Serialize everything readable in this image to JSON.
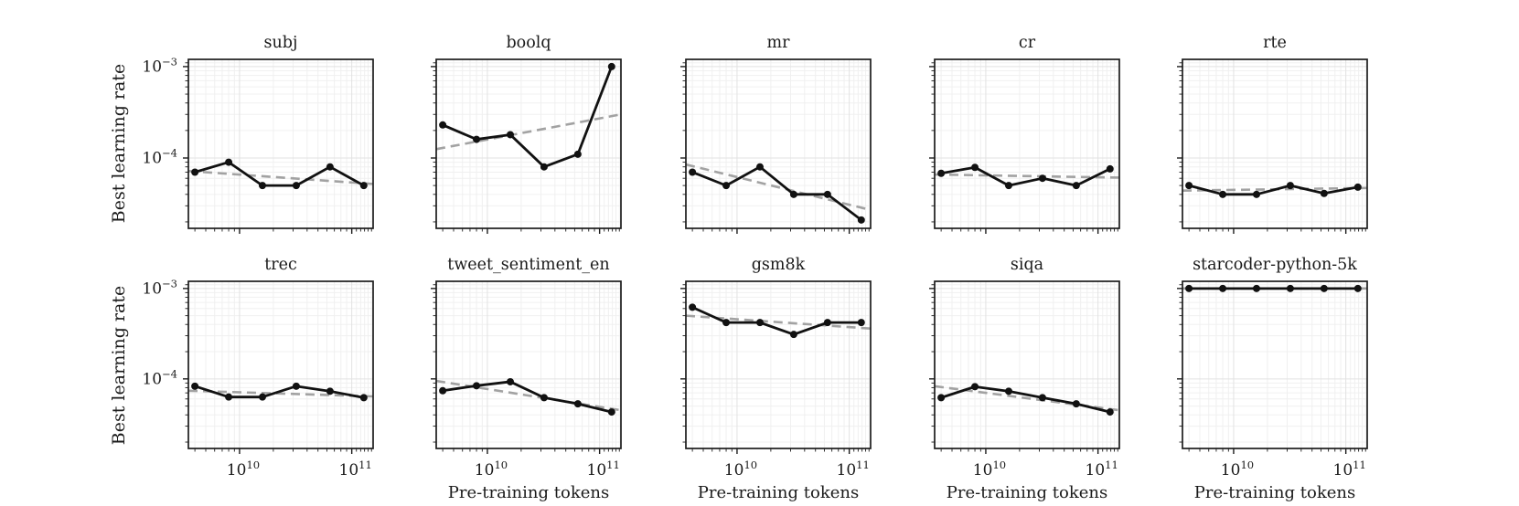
{
  "colors": {
    "background": "#ffffff",
    "data_line": "#111111",
    "marker": "#111111",
    "trend_line": "#999999",
    "grid_major": "#e2e2e2",
    "grid_minor": "#f0f0f0",
    "frame": "#1c1c1c",
    "text": "#1a1a1a"
  },
  "chart_data": {
    "type": "line",
    "layout": "2x5 grid of subplots, shared log-log axes, light gridlines, outward ticks bottom/left",
    "shared": {
      "xlabel": "Pre-training tokens",
      "ylabel": "Best learning rate",
      "xscale": "log",
      "yscale": "log",
      "xlim": [
        3500000000.0,
        155000000000.0
      ],
      "ylim": [
        1.7e-05,
        0.0012
      ],
      "x": [
        4000000000.0,
        8000000000.0,
        16000000000.0,
        32000000000.0,
        64000000000.0,
        128000000000.0
      ],
      "xticks": [
        {
          "value": 10000000000.0,
          "base": "10",
          "exp": "10"
        },
        {
          "value": 100000000000.0,
          "base": "10",
          "exp": "11"
        }
      ],
      "yticks": [
        {
          "value": 0.001,
          "base": "10",
          "exp": "−3"
        },
        {
          "value": 0.0001,
          "base": "10",
          "exp": "−4"
        }
      ],
      "xticks_minor": [
        4000000000.0,
        5000000000.0,
        6000000000.0,
        7000000000.0,
        8000000000.0,
        9000000000.0,
        20000000000.0,
        30000000000.0,
        40000000000.0,
        50000000000.0,
        60000000000.0,
        70000000000.0,
        80000000000.0,
        90000000000.0,
        110000000000.0,
        120000000000.0,
        130000000000.0,
        140000000000.0,
        150000000000.0
      ],
      "yticks_minor": [
        2e-05,
        3e-05,
        4e-05,
        5e-05,
        6e-05,
        7e-05,
        8e-05,
        9e-05,
        0.0002,
        0.0003,
        0.0004,
        0.0005,
        0.0006,
        0.0007,
        0.0008,
        0.0009,
        0.0011
      ],
      "grid": true,
      "series_style": {
        "data": "solid black line with circular markers",
        "trend": "gray dashed linear fit spanning full x-range"
      }
    },
    "charts": [
      {
        "title": "subj",
        "row": 0,
        "col": 0,
        "y": [
          7e-05,
          9e-05,
          5e-05,
          5e-05,
          8e-05,
          5e-05
        ],
        "trend_y": [
          7.2e-05,
          5.2e-05
        ]
      },
      {
        "title": "boolq",
        "row": 0,
        "col": 1,
        "y": [
          0.00023,
          0.00016,
          0.00018,
          8e-05,
          0.00011,
          0.001
        ],
        "trend_y": [
          0.000125,
          0.0003
        ]
      },
      {
        "title": "mr",
        "row": 0,
        "col": 2,
        "y": [
          7e-05,
          5e-05,
          8e-05,
          4e-05,
          4e-05,
          2.1e-05
        ],
        "trend_y": [
          8.5e-05,
          2.7e-05
        ]
      },
      {
        "title": "cr",
        "row": 0,
        "col": 3,
        "y": [
          6.8e-05,
          7.9e-05,
          5e-05,
          6e-05,
          5e-05,
          7.6e-05
        ],
        "trend_y": [
          6.6e-05,
          6.1e-05
        ]
      },
      {
        "title": "rte",
        "row": 0,
        "col": 4,
        "y": [
          5e-05,
          4e-05,
          4e-05,
          5e-05,
          4.1e-05,
          4.8e-05
        ],
        "trend_y": [
          4.4e-05,
          4.7e-05
        ]
      },
      {
        "title": "trec",
        "row": 1,
        "col": 0,
        "y": [
          8.3e-05,
          6.3e-05,
          6.3e-05,
          8.3e-05,
          7.3e-05,
          6.2e-05
        ],
        "trend_y": [
          7.4e-05,
          6.4e-05
        ]
      },
      {
        "title": "tweet_sentiment_en",
        "row": 1,
        "col": 1,
        "y": [
          7.4e-05,
          8.4e-05,
          9.3e-05,
          6.2e-05,
          5.3e-05,
          4.3e-05
        ],
        "trend_y": [
          9.5e-05,
          4.5e-05
        ]
      },
      {
        "title": "gsm8k",
        "row": 1,
        "col": 2,
        "y": [
          0.00062,
          0.00042,
          0.00042,
          0.00031,
          0.00042,
          0.00042
        ],
        "trend_y": [
          0.0005,
          0.00036
        ]
      },
      {
        "title": "siqa",
        "row": 1,
        "col": 3,
        "y": [
          6.2e-05,
          8.2e-05,
          7.3e-05,
          6.2e-05,
          5.3e-05,
          4.3e-05
        ],
        "trend_y": [
          8.3e-05,
          4.5e-05
        ]
      },
      {
        "title": "starcoder-python-5k",
        "row": 1,
        "col": 4,
        "y": [
          0.001,
          0.001,
          0.001,
          0.001,
          0.001,
          0.001
        ],
        "trend_y": [
          0.001,
          0.001
        ]
      }
    ]
  }
}
